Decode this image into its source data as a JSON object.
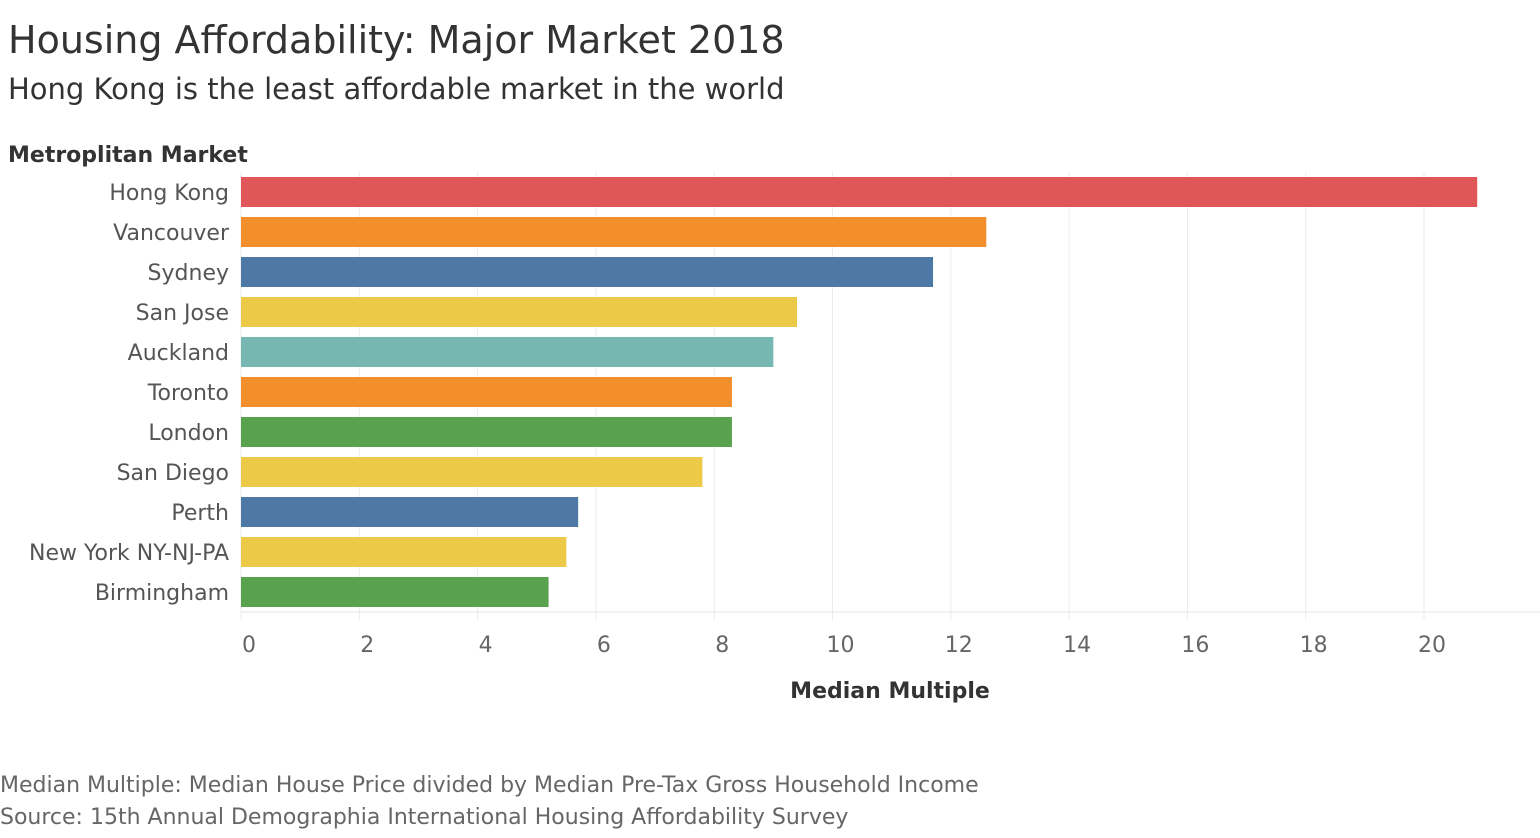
{
  "chart_data": {
    "type": "bar",
    "orientation": "horizontal",
    "title": "Housing Affordability: Major Market 2018",
    "subtitle": "Hong Kong is the least affordable market in the world",
    "ylabel": "Metroplitan Market",
    "xlabel": "Median Multiple",
    "xlim": [
      0,
      22
    ],
    "xticks": [
      0,
      2,
      4,
      6,
      8,
      10,
      12,
      14,
      16,
      18,
      20
    ],
    "grid": true,
    "categories": [
      "Hong Kong",
      "Vancouver",
      "Sydney",
      "San Jose",
      "Auckland",
      "Toronto",
      "London",
      "San Diego",
      "Perth",
      "New York NY-NJ-PA",
      "Birmingham"
    ],
    "values": [
      20.9,
      12.6,
      11.7,
      9.4,
      9.0,
      8.3,
      8.3,
      7.8,
      5.7,
      5.5,
      5.2
    ],
    "colors": [
      "#e15759",
      "#f28e2b",
      "#4e79a7",
      "#edc948",
      "#76b7b2",
      "#f28e2b",
      "#59a14f",
      "#edc948",
      "#4e79a7",
      "#edc948",
      "#59a14f"
    ]
  },
  "footnotes": {
    "definition": "Median Multiple: Median House Price divided by Median Pre-Tax Gross Household Income",
    "source": "Source: 15th Annual Demographia International Housing Affordability Survey"
  }
}
